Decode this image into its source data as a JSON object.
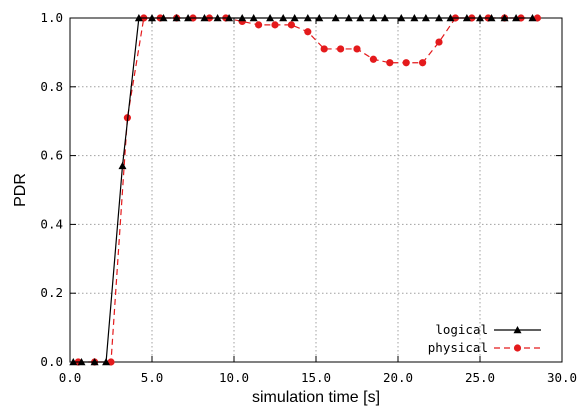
{
  "chart_data": {
    "type": "line",
    "xlabel": "simulation time [s]",
    "ylabel": "PDR",
    "xlim": [
      0,
      30
    ],
    "ylim": [
      0,
      1
    ],
    "xticks": [
      "0.0",
      "5.0",
      "10.0",
      "15.0",
      "20.0",
      "25.0",
      "30.0"
    ],
    "yticks": [
      "0.0",
      "0.2",
      "0.4",
      "0.6",
      "0.8",
      "1.0"
    ],
    "grid": true,
    "legend_position": "bottom-right",
    "series": [
      {
        "name": "logical",
        "color": "#000000",
        "marker": "triangle",
        "dashed": false,
        "x": [
          0.2,
          0.7,
          1.5,
          2.2,
          3.2,
          4.2,
          5.0,
          5.7,
          6.5,
          7.2,
          8.2,
          9.0,
          9.7,
          10.5,
          11.2,
          12.2,
          13.0,
          13.7,
          14.5,
          15.2,
          16.2,
          17.0,
          17.7,
          18.5,
          19.2,
          20.2,
          21.0,
          21.7,
          22.5,
          23.2,
          24.2,
          25.0,
          25.7,
          26.5,
          27.2,
          28.2
        ],
        "y": [
          0,
          0,
          0,
          0,
          0.57,
          1,
          1,
          1,
          1,
          1,
          1,
          1,
          1,
          1,
          1,
          1,
          1,
          1,
          1,
          1,
          1,
          1,
          1,
          1,
          1,
          1,
          1,
          1,
          1,
          1,
          1,
          1,
          1,
          1,
          1,
          1
        ]
      },
      {
        "name": "physical",
        "color": "#e41a1c",
        "marker": "circle",
        "dashed": true,
        "x": [
          0.5,
          1.5,
          2.5,
          3.5,
          4.5,
          5.5,
          6.5,
          7.5,
          8.5,
          9.5,
          10.5,
          11.5,
          12.5,
          13.5,
          14.5,
          15.5,
          16.5,
          17.5,
          18.5,
          19.5,
          20.5,
          21.5,
          22.5,
          23.5,
          24.5,
          25.5,
          26.5,
          27.5,
          28.5
        ],
        "y": [
          0,
          0,
          0,
          0.71,
          1,
          1,
          1,
          1,
          1,
          1,
          0.99,
          0.98,
          0.98,
          0.98,
          0.96,
          0.91,
          0.91,
          0.91,
          0.88,
          0.87,
          0.87,
          0.87,
          0.93,
          1,
          1,
          1,
          1,
          1,
          1
        ]
      }
    ]
  }
}
